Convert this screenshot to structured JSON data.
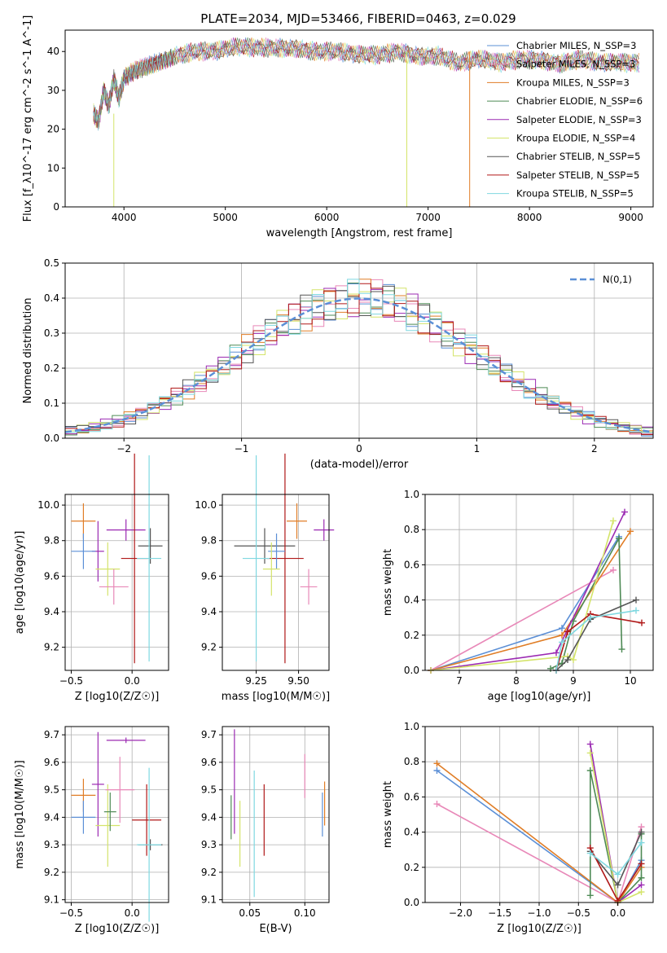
{
  "chart_data": [
    {
      "type": "line",
      "title": "PLATE=2034, MJD=53466, FIBERID=0463, z=0.029",
      "xlabel": "wavelength [Angstrom, rest frame]",
      "ylabel": "Flux [f_λ10^-17 erg cm^-2 s^-1 A^-1]",
      "xlim": [
        3420,
        9220
      ],
      "ylim": [
        0,
        45.5
      ],
      "xticks": [
        4000,
        5000,
        6000,
        7000,
        8000,
        9000
      ],
      "yticks": [
        0,
        10,
        20,
        30,
        40
      ],
      "legend_position": "top-right",
      "legend": [
        {
          "label": "Chabrier MILES, N_SSP=3",
          "color": "#5b8fd6"
        },
        {
          "label": "Salpeter MILES, N_SSP=3",
          "color": "#e888b8"
        },
        {
          "label": "Kroupa MILES, N_SSP=3",
          "color": "#e07d26"
        },
        {
          "label": "Chabrier ELODIE, N_SSP=6",
          "color": "#4e8a55"
        },
        {
          "label": "Salpeter ELODIE, N_SSP=3",
          "color": "#9b2ab2"
        },
        {
          "label": "Kroupa ELODIE, N_SSP=4",
          "color": "#d4e46a"
        },
        {
          "label": "Chabrier STELIB, N_SSP=5",
          "color": "#555555"
        },
        {
          "label": "Salpeter STELIB, N_SSP=5",
          "color": "#b01818"
        },
        {
          "label": "Kroupa STELIB, N_SSP=5",
          "color": "#7fd8e0"
        }
      ],
      "spectrum": {
        "x": [
          3700,
          3750,
          3800,
          3850,
          3900,
          3950,
          4000,
          4100,
          4200,
          4300,
          4400,
          4500,
          4700,
          4900,
          5100,
          5300,
          5500,
          5700,
          5900,
          6100,
          6300,
          6500,
          6700,
          6900,
          7100,
          7300,
          7500,
          7700,
          7900,
          8100,
          8300,
          8500,
          8700,
          8900,
          9100
        ],
        "y": [
          24,
          22,
          30,
          26,
          33,
          28,
          33,
          35,
          36,
          37,
          38,
          39,
          40,
          40,
          41,
          41,
          41,
          41,
          40,
          40,
          39,
          39,
          40,
          39,
          39,
          37,
          38,
          37,
          38,
          38,
          37,
          38,
          37,
          37,
          37
        ]
      }
    },
    {
      "type": "line",
      "title": "",
      "xlabel": "(data-model)/error",
      "ylabel": "Normed distribution",
      "xlim": [
        -2.5,
        2.5
      ],
      "ylim": [
        0,
        0.5
      ],
      "xticks": [
        -2,
        -1,
        0,
        1,
        2
      ],
      "yticks": [
        0.0,
        0.1,
        0.2,
        0.3,
        0.4,
        0.5
      ],
      "legend": [
        {
          "label": "N(0,1)",
          "color": "#5b8fd6"
        }
      ],
      "legend_position": "top-right",
      "grid": true
    },
    {
      "type": "scatter",
      "xlabel": "Z [log10(Z/Z☉)]",
      "ylabel": "age  [log10(age/yr)]",
      "xlim": [
        -0.55,
        0.3
      ],
      "ylim": [
        9.07,
        10.06
      ],
      "xticks": [
        -0.5,
        0.0
      ],
      "yticks": [
        9.2,
        9.4,
        9.6,
        9.8,
        10.0
      ],
      "grid": true,
      "errorbars": [
        {
          "x": -0.4,
          "xerr": 0.1,
          "y": 9.91,
          "yerr": 0.1,
          "color": "#e07d26"
        },
        {
          "x": -0.28,
          "xerr": 0.05,
          "y": 9.74,
          "yerr": 0.17,
          "color": "#9b2ab2"
        },
        {
          "x": -0.05,
          "xerr": 0.16,
          "y": 9.86,
          "yerr": 0.06,
          "color": "#9b2ab2"
        },
        {
          "x": 0.15,
          "xerr": 0.1,
          "y": 9.77,
          "yerr": 0.1,
          "color": "#555555"
        },
        {
          "x": 0.02,
          "xerr": 0.11,
          "y": 9.7,
          "yerr": 0.59,
          "color": "#b01818"
        },
        {
          "x": -0.4,
          "xerr": 0.1,
          "y": 9.74,
          "yerr": 0.1,
          "color": "#5b8fd6"
        },
        {
          "x": -0.2,
          "xerr": 0.1,
          "y": 9.64,
          "yerr": 0.15,
          "color": "#d4e46a"
        },
        {
          "x": -0.15,
          "xerr": 0.12,
          "y": 9.54,
          "yerr": 0.1,
          "color": "#e888b8"
        },
        {
          "x": 0.14,
          "xerr": 0.1,
          "y": 9.7,
          "yerr": 0.58,
          "color": "#7fd8e0"
        }
      ]
    },
    {
      "type": "scatter",
      "xlabel": "mass [log10(M/M☉)]",
      "ylabel": "",
      "xlim": [
        9.05,
        9.68
      ],
      "ylim": [
        9.07,
        10.06
      ],
      "xticks": [
        9.25,
        9.5
      ],
      "yticks": [
        9.2,
        9.4,
        9.6,
        9.8,
        10.0
      ],
      "grid": true,
      "errorbars": [
        {
          "x": 9.49,
          "xerr": 0.06,
          "y": 9.91,
          "yerr": 0.1,
          "color": "#e07d26"
        },
        {
          "x": 9.65,
          "xerr": 0.06,
          "y": 9.86,
          "yerr": 0.06,
          "color": "#9b2ab2"
        },
        {
          "x": 9.3,
          "xerr": 0.18,
          "y": 9.77,
          "yerr": 0.1,
          "color": "#555555"
        },
        {
          "x": 9.42,
          "xerr": 0.11,
          "y": 9.7,
          "yerr": 0.59,
          "color": "#b01818"
        },
        {
          "x": 9.37,
          "xerr": 0.05,
          "y": 9.74,
          "yerr": 0.1,
          "color": "#5b8fd6"
        },
        {
          "x": 9.34,
          "xerr": 0.05,
          "y": 9.64,
          "yerr": 0.15,
          "color": "#d4e46a"
        },
        {
          "x": 9.56,
          "xerr": 0.05,
          "y": 9.54,
          "yerr": 0.1,
          "color": "#e888b8"
        },
        {
          "x": 9.25,
          "xerr": 0.08,
          "y": 9.7,
          "yerr": 0.58,
          "color": "#7fd8e0"
        }
      ]
    },
    {
      "type": "line",
      "xlabel": "age  [log10(age/yr)]",
      "ylabel": "mass weight",
      "xlim": [
        6.4,
        10.4
      ],
      "ylim": [
        0,
        1
      ],
      "xticks": [
        7,
        8,
        9,
        10
      ],
      "yticks": [
        0.0,
        0.2,
        0.4,
        0.6,
        0.8,
        1.0
      ],
      "grid": true,
      "series": [
        {
          "color": "#5b8fd6",
          "x": [
            6.5,
            8.8,
            9.8
          ],
          "y": [
            0.0,
            0.24,
            0.76
          ]
        },
        {
          "color": "#e888b8",
          "x": [
            6.5,
            9.7
          ],
          "y": [
            0.0,
            0.57
          ]
        },
        {
          "color": "#e07d26",
          "x": [
            6.5,
            8.8,
            10.0
          ],
          "y": [
            0.0,
            0.2,
            0.79
          ]
        },
        {
          "color": "#4e8a55",
          "x": [
            8.6,
            8.8,
            9.0,
            9.8,
            9.85
          ],
          "y": [
            0.01,
            0.04,
            0.28,
            0.75,
            0.12
          ]
        },
        {
          "color": "#9b2ab2",
          "x": [
            6.5,
            8.7,
            9.9
          ],
          "y": [
            0.0,
            0.1,
            0.9
          ]
        },
        {
          "color": "#d4e46a",
          "x": [
            6.5,
            8.9,
            9.0,
            9.7
          ],
          "y": [
            0.0,
            0.08,
            0.06,
            0.85
          ]
        },
        {
          "color": "#555555",
          "x": [
            8.7,
            8.9,
            9.3,
            10.1
          ],
          "y": [
            0.0,
            0.06,
            0.29,
            0.4
          ]
        },
        {
          "color": "#b01818",
          "x": [
            8.7,
            8.9,
            9.3,
            10.2
          ],
          "y": [
            0.0,
            0.22,
            0.32,
            0.27
          ]
        },
        {
          "color": "#7fd8e0",
          "x": [
            8.7,
            8.8,
            9.3,
            10.1
          ],
          "y": [
            0.0,
            0.16,
            0.3,
            0.34
          ]
        }
      ]
    },
    {
      "type": "scatter",
      "xlabel": "Z [log10(Z/Z☉)]",
      "ylabel": "mass [log10(M/M☉)]",
      "xlim": [
        -0.55,
        0.3
      ],
      "ylim": [
        9.09,
        9.73
      ],
      "xticks": [
        -0.5,
        0.0
      ],
      "yticks": [
        9.1,
        9.2,
        9.3,
        9.4,
        9.5,
        9.6,
        9.7
      ],
      "grid": true,
      "errorbars": [
        {
          "x": -0.4,
          "xerr": 0.1,
          "y": 9.48,
          "yerr": 0.06,
          "color": "#e07d26"
        },
        {
          "x": -0.28,
          "xerr": 0.05,
          "y": 9.52,
          "yerr": 0.19,
          "color": "#9b2ab2"
        },
        {
          "x": -0.05,
          "xerr": 0.16,
          "y": 9.68,
          "yerr": 0.01,
          "color": "#9b2ab2"
        },
        {
          "x": 0.15,
          "xerr": 0.1,
          "y": 9.3,
          "yerr": 0.02,
          "color": "#555555"
        },
        {
          "x": 0.12,
          "xerr": 0.12,
          "y": 9.39,
          "yerr": 0.13,
          "color": "#b01818"
        },
        {
          "x": -0.4,
          "xerr": 0.1,
          "y": 9.4,
          "yerr": 0.06,
          "color": "#5b8fd6"
        },
        {
          "x": -0.2,
          "xerr": 0.1,
          "y": 9.37,
          "yerr": 0.15,
          "color": "#d4e46a"
        },
        {
          "x": -0.1,
          "xerr": 0.12,
          "y": 9.5,
          "yerr": 0.12,
          "color": "#e888b8"
        },
        {
          "x": 0.14,
          "xerr": 0.1,
          "y": 9.3,
          "yerr": 0.28,
          "color": "#7fd8e0"
        },
        {
          "x": -0.18,
          "xerr": 0.05,
          "y": 9.42,
          "yerr": 0.07,
          "color": "#4e8a55"
        }
      ]
    },
    {
      "type": "scatter",
      "xlabel": "E(B-V)",
      "ylabel": "",
      "xlim": [
        0.025,
        0.122
      ],
      "ylim": [
        9.09,
        9.73
      ],
      "xticks": [
        0.05,
        0.1
      ],
      "yticks": [
        9.1,
        9.2,
        9.3,
        9.4,
        9.5,
        9.6,
        9.7
      ],
      "grid": true,
      "errorbars": [
        {
          "x": 0.118,
          "xerr": 0,
          "y": 9.45,
          "yerr": 0.08,
          "color": "#e07d26"
        },
        {
          "x": 0.036,
          "xerr": 0,
          "y": 9.53,
          "yerr": 0.19,
          "color": "#9b2ab2"
        },
        {
          "x": 0.063,
          "xerr": 0,
          "y": 9.39,
          "yerr": 0.13,
          "color": "#b01818"
        },
        {
          "x": 0.116,
          "xerr": 0,
          "y": 9.41,
          "yerr": 0.08,
          "color": "#5b8fd6"
        },
        {
          "x": 0.041,
          "xerr": 0,
          "y": 9.34,
          "yerr": 0.12,
          "color": "#d4e46a"
        },
        {
          "x": 0.1,
          "xerr": 0,
          "y": 9.55,
          "yerr": 0.08,
          "color": "#e888b8"
        },
        {
          "x": 0.054,
          "xerr": 0,
          "y": 9.34,
          "yerr": 0.23,
          "color": "#7fd8e0"
        },
        {
          "x": 0.033,
          "xerr": 0,
          "y": 9.4,
          "yerr": 0.08,
          "color": "#4e8a55"
        }
      ]
    },
    {
      "type": "line",
      "xlabel": "Z [log10(Z/Z☉)]",
      "ylabel": "mass weight",
      "xlim": [
        -2.45,
        0.45
      ],
      "ylim": [
        0,
        1
      ],
      "xticks": [
        -2.0,
        -1.5,
        -1.0,
        -0.5,
        0.0
      ],
      "yticks": [
        0.0,
        0.2,
        0.4,
        0.6,
        0.8,
        1.0
      ],
      "grid": true,
      "series": [
        {
          "color": "#5b8fd6",
          "x": [
            -2.3,
            0.0,
            0.3
          ],
          "y": [
            0.75,
            0.0,
            0.24
          ]
        },
        {
          "color": "#e888b8",
          "x": [
            -2.3,
            0.0,
            0.3
          ],
          "y": [
            0.56,
            0.0,
            0.43
          ]
        },
        {
          "color": "#e07d26",
          "x": [
            -2.3,
            0.0,
            0.3
          ],
          "y": [
            0.79,
            0.0,
            0.2
          ]
        },
        {
          "color": "#4e8a55",
          "x": [
            -0.35,
            -0.35,
            0.0,
            0.3,
            0.3
          ],
          "y": [
            0.04,
            0.75,
            0.0,
            0.14,
            0.39
          ]
        },
        {
          "color": "#9b2ab2",
          "x": [
            -0.35,
            0.0,
            0.3
          ],
          "y": [
            0.9,
            0.0,
            0.1
          ]
        },
        {
          "color": "#d4e46a",
          "x": [
            -0.35,
            0.0,
            0.3
          ],
          "y": [
            0.85,
            0.0,
            0.06
          ]
        },
        {
          "color": "#555555",
          "x": [
            -0.35,
            0.0,
            0.3
          ],
          "y": [
            0.29,
            0.1,
            0.4
          ]
        },
        {
          "color": "#b01818",
          "x": [
            -0.35,
            0.0,
            0.3
          ],
          "y": [
            0.31,
            0.01,
            0.22
          ]
        },
        {
          "color": "#7fd8e0",
          "x": [
            -0.35,
            0.0,
            0.3
          ],
          "y": [
            0.28,
            0.16,
            0.34
          ]
        }
      ]
    }
  ]
}
